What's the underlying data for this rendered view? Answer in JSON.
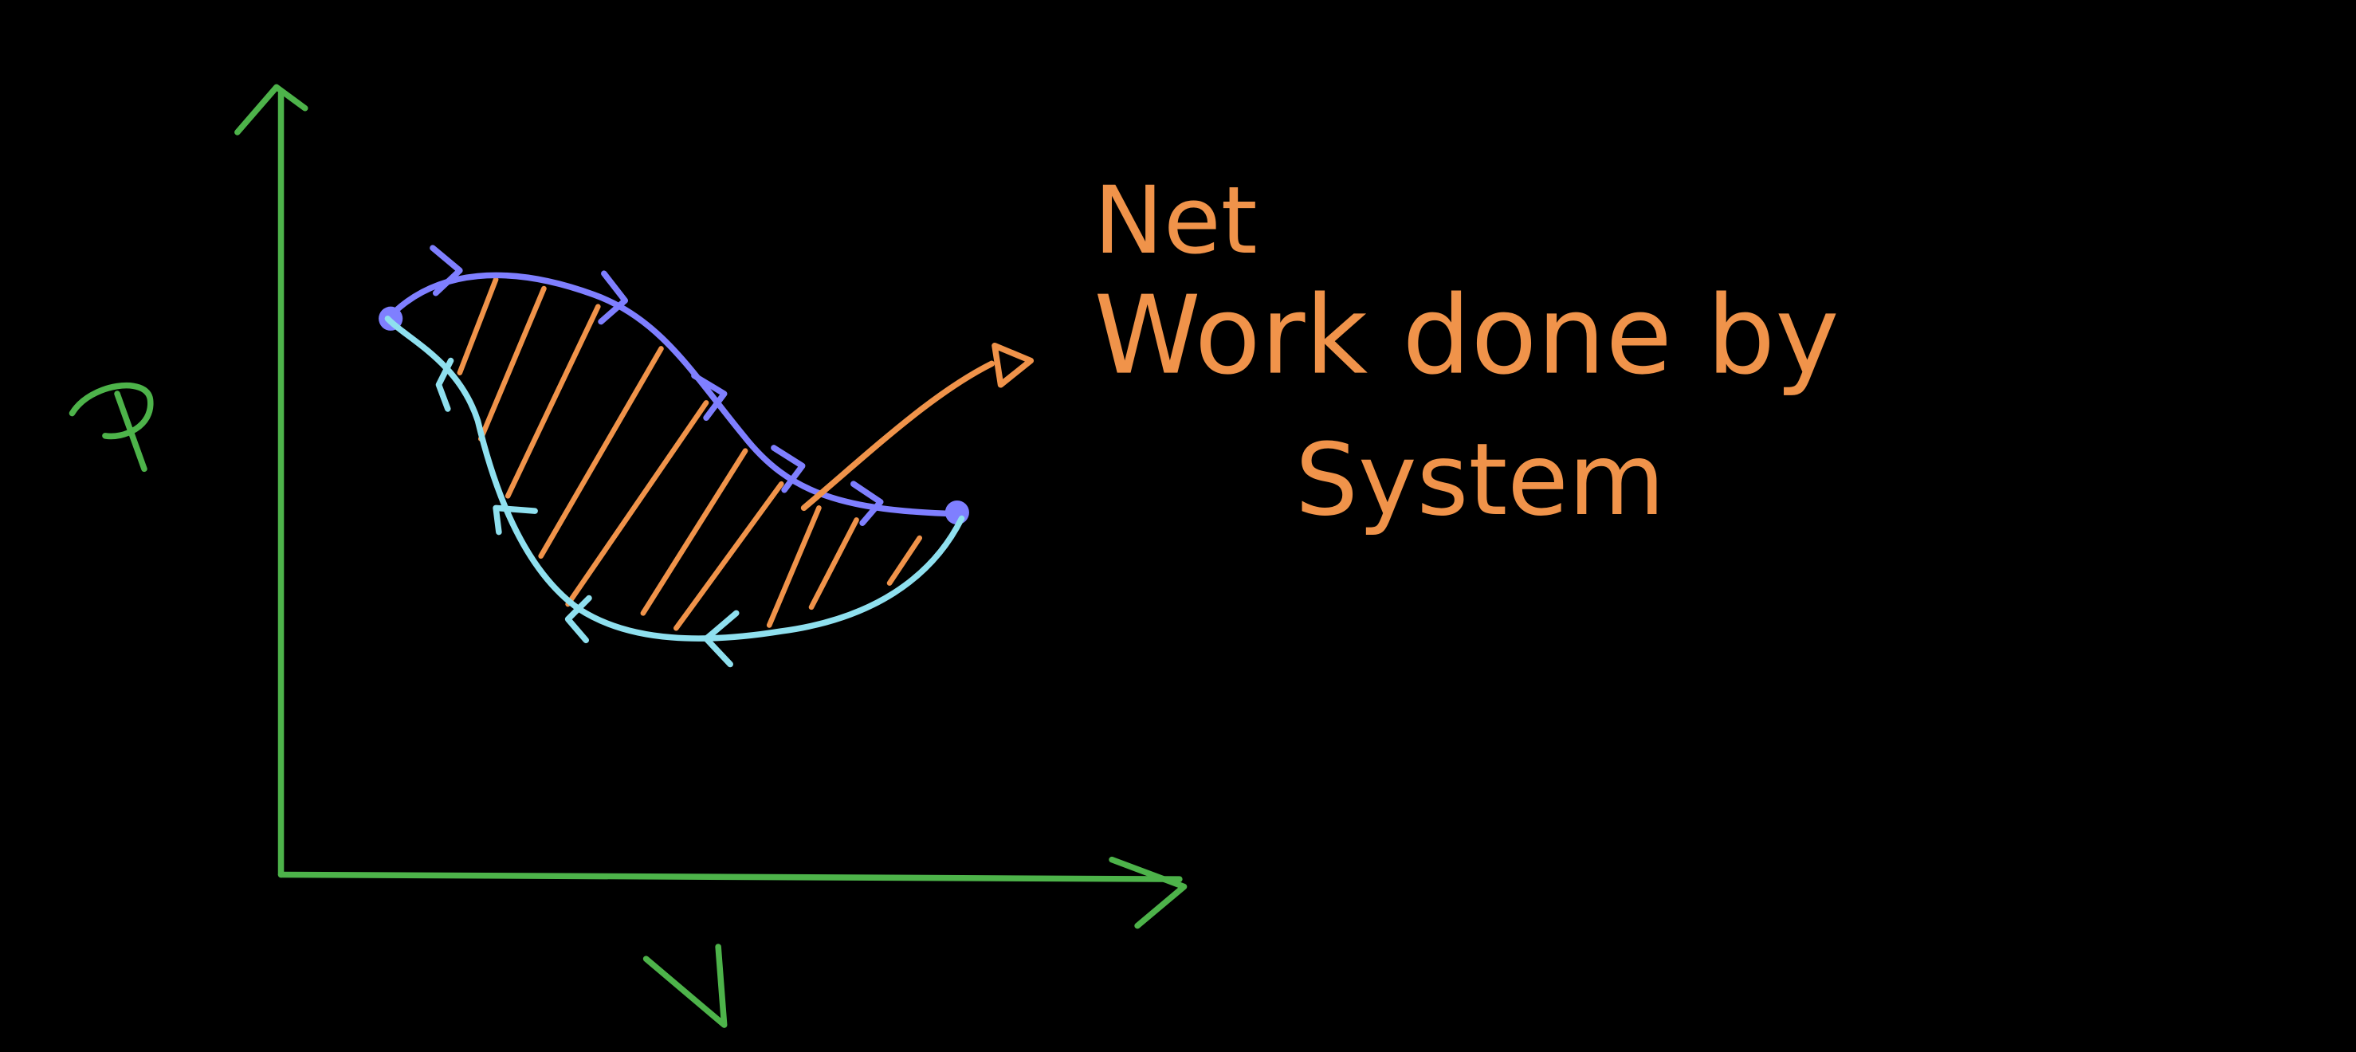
{
  "diagram": {
    "y_axis_label": "P",
    "x_axis_label": "V",
    "annotation_lines": [
      "Net",
      "Work done by",
      "System"
    ],
    "colors": {
      "background": "#000000",
      "axes": "#4db34a",
      "expansion_curve": "#7f7fff",
      "compression_curve": "#8fe0ef",
      "hatching": "#f0934a",
      "annotation": "#f0934a"
    },
    "icons": {
      "expansion_arrowheads": "chevron-right-icon",
      "compression_arrowheads": "chevron-left-icon",
      "annotation_pointer": "arrow-right-icon"
    }
  }
}
